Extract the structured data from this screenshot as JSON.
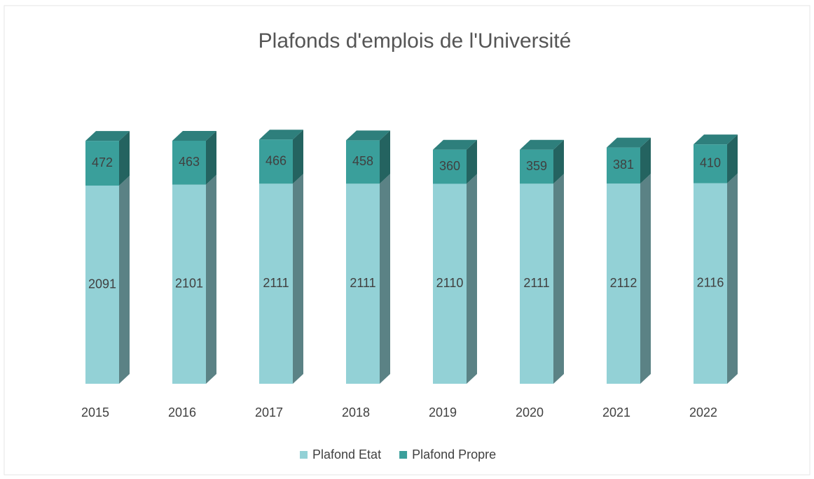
{
  "chart_data": {
    "type": "bar",
    "stacked": true,
    "three_d": true,
    "title": "Plafonds d'emplois de l'Université",
    "categories": [
      "2015",
      "2016",
      "2017",
      "2018",
      "2019",
      "2020",
      "2021",
      "2022"
    ],
    "series": [
      {
        "name": "Plafond Etat",
        "color": "#93d1d6",
        "values": [
          2091,
          2101,
          2111,
          2111,
          2110,
          2111,
          2112,
          2116
        ]
      },
      {
        "name": "Plafond Propre",
        "color": "#3a9f9b",
        "values": [
          472,
          463,
          466,
          458,
          360,
          359,
          381,
          410
        ]
      }
    ],
    "ylim": [
      0,
      3000
    ],
    "grid": false,
    "legend": "bottom"
  }
}
